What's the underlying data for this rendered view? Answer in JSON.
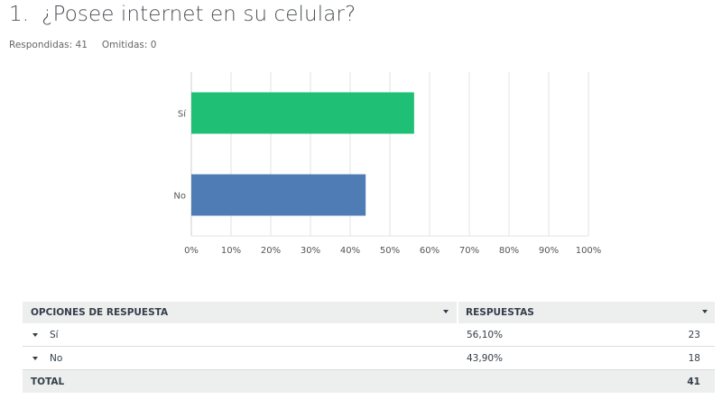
{
  "question": {
    "number": "1.",
    "text": "¿Posee internet en su celular?"
  },
  "meta": {
    "answered": "Respondidas: 41",
    "skipped": "Omitidas: 0"
  },
  "chart_data": {
    "type": "bar",
    "orientation": "horizontal",
    "categories": [
      "Sí",
      "No"
    ],
    "values": [
      56.1,
      43.9
    ],
    "colors": [
      "#1fbf75",
      "#507cb6"
    ],
    "xlim": [
      0,
      100
    ],
    "xticks": [
      "0%",
      "10%",
      "20%",
      "30%",
      "40%",
      "50%",
      "60%",
      "70%",
      "80%",
      "90%",
      "100%"
    ],
    "grid": true,
    "title": "",
    "xlabel": "",
    "ylabel": ""
  },
  "table": {
    "headers": {
      "options": "OPCIONES DE RESPUESTA",
      "responses": "RESPUESTAS"
    },
    "rows": [
      {
        "label": "Sí",
        "percent": "56,10%",
        "count": "23"
      },
      {
        "label": "No",
        "percent": "43,90%",
        "count": "18"
      }
    ],
    "total": {
      "label": "TOTAL",
      "count": "41"
    }
  }
}
